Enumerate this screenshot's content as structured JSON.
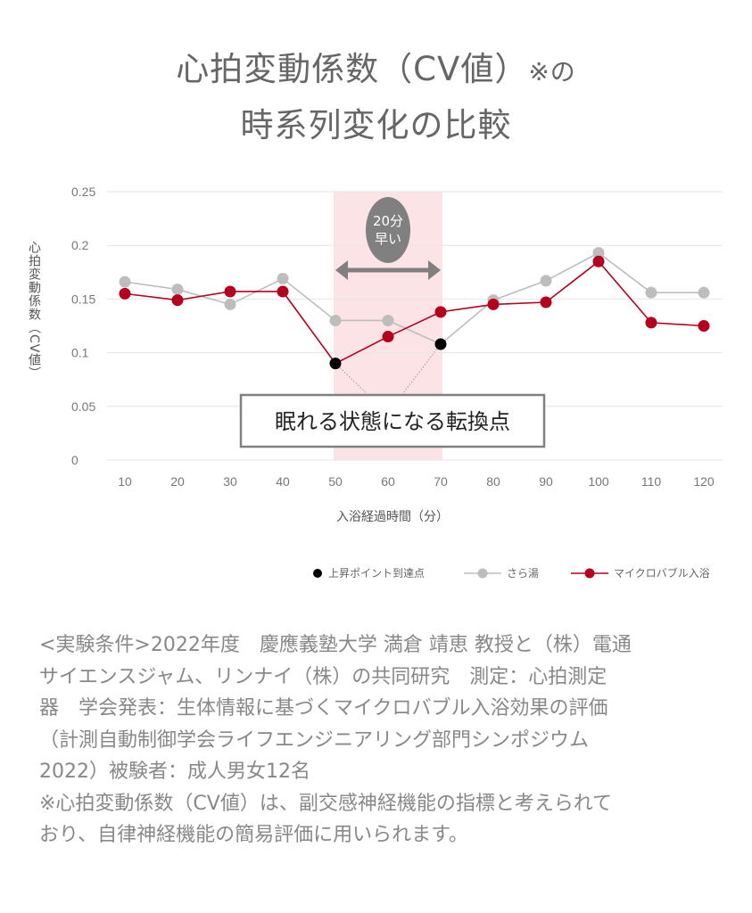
{
  "title": {
    "line1": "心拍変動係数（CV値）",
    "line1_suffix": "※の",
    "line2": "時系列変化の比較"
  },
  "chart_data": {
    "type": "line",
    "title": "心拍変動係数（CV値）※の時系列変化の比較",
    "xlabel": "入浴経過時間（分）",
    "ylabel": "心拍変動係数（CV値）",
    "x": [
      10,
      20,
      30,
      40,
      50,
      60,
      70,
      80,
      90,
      100,
      110,
      120
    ],
    "x_tick_labels": [
      "10",
      "20",
      "30",
      "40",
      "50",
      "60",
      "70",
      "80",
      "90",
      "100",
      "110",
      "120"
    ],
    "y_tick_labels": [
      "0",
      "0.05",
      "0.1",
      "0.15",
      "0.2",
      "0.25"
    ],
    "y_ticks": [
      0,
      0.05,
      0.1,
      0.15,
      0.2,
      0.25
    ],
    "ylim": [
      0,
      0.25
    ],
    "grid": true,
    "series": [
      {
        "name": "さら湯",
        "color": "#bdbdbd",
        "values": [
          0.166,
          0.159,
          0.145,
          0.169,
          0.13,
          0.13,
          0.108,
          0.149,
          0.167,
          0.193,
          0.156,
          0.156
        ],
        "peak_index": 6
      },
      {
        "name": "マイクロバブル入浴",
        "color": "#b5001e",
        "values": [
          0.155,
          0.149,
          0.157,
          0.157,
          0.09,
          0.115,
          0.138,
          0.145,
          0.147,
          0.185,
          0.128,
          0.125
        ],
        "peak_index": 4
      }
    ],
    "peak_legend": "上昇ポイント到達点",
    "highlight_range": [
      50,
      70
    ],
    "highlight_color": "#fbe3e6",
    "bubble": {
      "line1": "20分",
      "line2": "早い"
    },
    "annotation": "眠れる状態になる転換点",
    "legend_position": "bottom-right"
  },
  "notes": [
    "<実験条件>2022年度　慶應義塾大学 満倉 靖恵 教授と（株）電通",
    "サイエンスジャム、リンナイ（株）の共同研究　測定：心拍測定",
    "器　学会発表：生体情報に基づくマイクロバブル入浴効果の評価",
    "（計測自動制御学会ライフエンジニアリング部門シンポジウム",
    "2022）被験者：成人男女12名",
    "※心拍変動係数（CV値）は、副交感神経機能の指標と考えられて",
    "おり、自律神経機能の簡易評価に用いられます。"
  ]
}
